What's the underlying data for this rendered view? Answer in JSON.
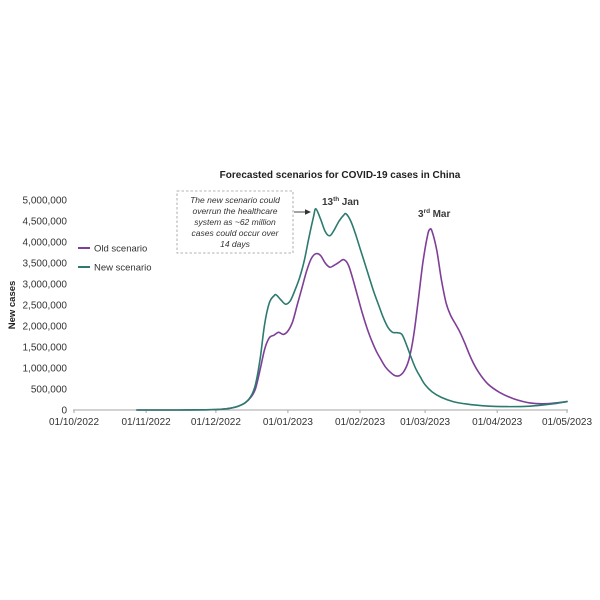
{
  "chart_data": {
    "type": "line",
    "title": "Forecasted scenarios for COVID-19 cases in China",
    "ylabel": "New cases",
    "xlim": [
      "01/10/2022",
      "01/05/2023"
    ],
    "ylim": [
      0,
      5000000
    ],
    "xtick_labels": [
      "01/10/2022",
      "01/11/2022",
      "01/12/2022",
      "01/01/2023",
      "01/02/2023",
      "01/03/2023",
      "01/04/2023",
      "01/05/2023"
    ],
    "ytick_labels": [
      "0",
      "500,000",
      "1,000,000",
      "1,500,000",
      "2,000,000",
      "2,500,000",
      "3,000,000",
      "3,500,000",
      "4,000,000",
      "4,500,000",
      "5,000,000"
    ],
    "grid": false,
    "legend_position": "top-left",
    "series": [
      {
        "name": "Old scenario",
        "color": "#7e3f98",
        "x": [
          "28/10/2022",
          "15/11/2022",
          "01/12/2022",
          "08/12/2022",
          "13/12/2022",
          "16/12/2022",
          "18/12/2022",
          "20/12/2022",
          "22/12/2022",
          "24/12/2022",
          "26/12/2022",
          "28/12/2022",
          "30/12/2022",
          "01/01/2023",
          "03/01/2023",
          "05/01/2023",
          "07/01/2023",
          "09/01/2023",
          "11/01/2023",
          "13/01/2023",
          "15/01/2023",
          "17/01/2023",
          "19/01/2023",
          "21/01/2023",
          "23/01/2023",
          "25/01/2023",
          "27/01/2023",
          "29/01/2023",
          "31/01/2023",
          "02/02/2023",
          "04/02/2023",
          "06/02/2023",
          "08/02/2023",
          "10/02/2023",
          "12/02/2023",
          "14/02/2023",
          "16/02/2023",
          "18/02/2023",
          "20/02/2023",
          "22/02/2023",
          "24/02/2023",
          "26/02/2023",
          "28/02/2023",
          "02/03/2023",
          "03/03/2023",
          "04/03/2023",
          "06/03/2023",
          "08/03/2023",
          "10/03/2023",
          "12/03/2023",
          "14/03/2023",
          "16/03/2023",
          "18/03/2023",
          "21/03/2023",
          "24/03/2023",
          "28/03/2023",
          "02/04/2023",
          "08/04/2023",
          "15/04/2023",
          "22/04/2023",
          "01/05/2023"
        ],
        "y": [
          0,
          0,
          10000,
          50000,
          150000,
          300000,
          500000,
          950000,
          1450000,
          1720000,
          1780000,
          1850000,
          1800000,
          1880000,
          2100000,
          2500000,
          2900000,
          3300000,
          3600000,
          3720000,
          3680000,
          3500000,
          3400000,
          3450000,
          3520000,
          3580000,
          3450000,
          3100000,
          2700000,
          2300000,
          1950000,
          1650000,
          1400000,
          1200000,
          1020000,
          900000,
          820000,
          820000,
          930000,
          1200000,
          1750000,
          2600000,
          3500000,
          4150000,
          4300000,
          4250000,
          3800000,
          3100000,
          2550000,
          2250000,
          2050000,
          1850000,
          1600000,
          1200000,
          900000,
          620000,
          420000,
          270000,
          170000,
          150000,
          200000
        ]
      },
      {
        "name": "New scenario",
        "color": "#2d7a6f",
        "x": [
          "28/10/2022",
          "15/11/2022",
          "01/12/2022",
          "08/12/2022",
          "13/12/2022",
          "16/12/2022",
          "18/12/2022",
          "20/12/2022",
          "22/12/2022",
          "24/12/2022",
          "26/12/2022",
          "27/12/2022",
          "29/12/2022",
          "31/12/2022",
          "02/01/2023",
          "04/01/2023",
          "06/01/2023",
          "08/01/2023",
          "10/01/2023",
          "12/01/2023",
          "13/01/2023",
          "15/01/2023",
          "17/01/2023",
          "19/01/2023",
          "21/01/2023",
          "23/01/2023",
          "25/01/2023",
          "26/01/2023",
          "28/01/2023",
          "30/01/2023",
          "01/02/2023",
          "03/02/2023",
          "05/02/2023",
          "07/02/2023",
          "09/02/2023",
          "11/02/2023",
          "13/02/2023",
          "15/02/2023",
          "17/02/2023",
          "19/02/2023",
          "21/02/2023",
          "23/02/2023",
          "25/02/2023",
          "27/02/2023",
          "01/03/2023",
          "04/03/2023",
          "08/03/2023",
          "13/03/2023",
          "19/03/2023",
          "26/03/2023",
          "05/04/2023",
          "15/04/2023",
          "24/04/2023",
          "01/05/2023"
        ],
        "y": [
          0,
          0,
          10000,
          50000,
          150000,
          320000,
          600000,
          1200000,
          2050000,
          2550000,
          2720000,
          2740000,
          2620000,
          2520000,
          2600000,
          2850000,
          3150000,
          3550000,
          4100000,
          4600000,
          4790000,
          4550000,
          4250000,
          4150000,
          4300000,
          4500000,
          4640000,
          4670000,
          4500000,
          4200000,
          3850000,
          3500000,
          3150000,
          2800000,
          2500000,
          2200000,
          1970000,
          1850000,
          1840000,
          1800000,
          1550000,
          1250000,
          980000,
          780000,
          600000,
          430000,
          300000,
          200000,
          140000,
          100000,
          80000,
          90000,
          140000,
          200000
        ]
      }
    ],
    "annotation": {
      "lines": [
        "The new scenario could",
        "overrun the healthcare",
        "system as ~62 million",
        "cases could occur over",
        "14 days"
      ]
    },
    "peak_labels": [
      {
        "day": "13",
        "suffix": "th",
        "month": "Jan"
      },
      {
        "day": "3",
        "suffix": "rd",
        "month": "Mar"
      }
    ]
  }
}
